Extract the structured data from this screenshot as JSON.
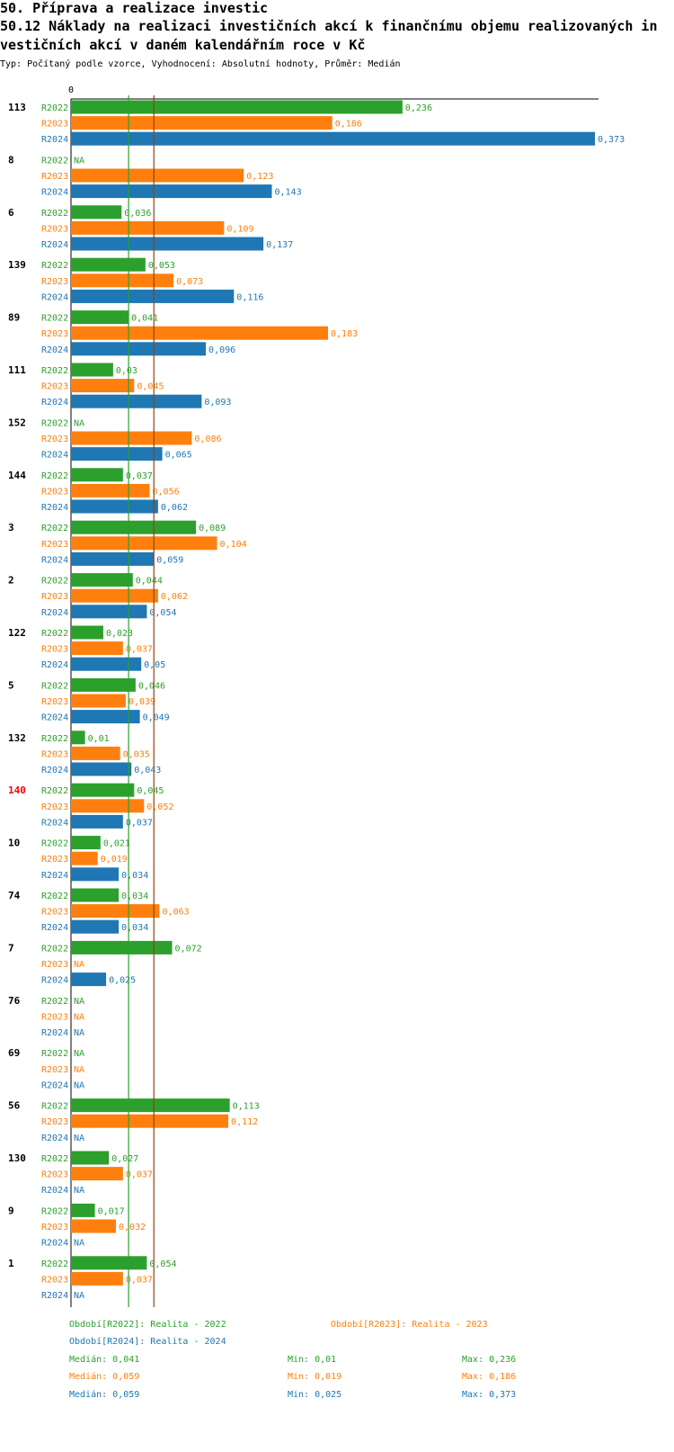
{
  "header": {
    "title1": "50. Příprava a realizace investic",
    "title2a": "50.12 Náklady na realizaci investičních akcí k finančnímu objemu realizovaných in",
    "title2b": "vestičních akcí v daném kalendářním roce v Kč",
    "subtitle": "Typ: Počítaný podle vzorce, Vyhodnocení: Absolutní hodnoty, Průměr: Medián"
  },
  "colors": {
    "R2022": "#2ca02c",
    "R2023": "#ff7f0e",
    "R2024": "#1f77b4",
    "highlight": "#ff0000",
    "median_line_a": "#2ca02c",
    "median_line_b": "#8b4513"
  },
  "chart_data": {
    "type": "bar",
    "orientation": "horizontal",
    "axis_zero_label": "0",
    "xlim": [
      0,
      0.373
    ],
    "series_names": [
      "R2022",
      "R2023",
      "R2024"
    ],
    "reference_lines": [
      {
        "name": "Medián R2022",
        "value": 0.041,
        "color": "#2ca02c"
      },
      {
        "name": "Medián R2023/R2024",
        "value": 0.059,
        "color": "#8b4513"
      }
    ],
    "groups": [
      {
        "id": "113",
        "highlight": false,
        "values": [
          0.236,
          0.186,
          0.373
        ]
      },
      {
        "id": "8",
        "highlight": false,
        "values": [
          null,
          0.123,
          0.143
        ]
      },
      {
        "id": "6",
        "highlight": false,
        "values": [
          0.036,
          0.109,
          0.137
        ]
      },
      {
        "id": "139",
        "highlight": false,
        "values": [
          0.053,
          0.073,
          0.116
        ]
      },
      {
        "id": "89",
        "highlight": false,
        "values": [
          0.041,
          0.183,
          0.096
        ]
      },
      {
        "id": "111",
        "highlight": false,
        "values": [
          0.03,
          0.045,
          0.093
        ]
      },
      {
        "id": "152",
        "highlight": false,
        "values": [
          null,
          0.086,
          0.065
        ]
      },
      {
        "id": "144",
        "highlight": false,
        "values": [
          0.037,
          0.056,
          0.062
        ]
      },
      {
        "id": "3",
        "highlight": false,
        "values": [
          0.089,
          0.104,
          0.059
        ]
      },
      {
        "id": "2",
        "highlight": false,
        "values": [
          0.044,
          0.062,
          0.054
        ]
      },
      {
        "id": "122",
        "highlight": false,
        "values": [
          0.023,
          0.037,
          0.05
        ]
      },
      {
        "id": "5",
        "highlight": false,
        "values": [
          0.046,
          0.039,
          0.049
        ]
      },
      {
        "id": "132",
        "highlight": false,
        "values": [
          0.01,
          0.035,
          0.043
        ]
      },
      {
        "id": "140",
        "highlight": true,
        "values": [
          0.045,
          0.052,
          0.037
        ]
      },
      {
        "id": "10",
        "highlight": false,
        "values": [
          0.021,
          0.019,
          0.034
        ]
      },
      {
        "id": "74",
        "highlight": false,
        "values": [
          0.034,
          0.063,
          0.034
        ]
      },
      {
        "id": "7",
        "highlight": false,
        "values": [
          0.072,
          null,
          0.025
        ]
      },
      {
        "id": "76",
        "highlight": false,
        "values": [
          null,
          null,
          null
        ]
      },
      {
        "id": "69",
        "highlight": false,
        "values": [
          null,
          null,
          null
        ]
      },
      {
        "id": "56",
        "highlight": false,
        "values": [
          0.113,
          0.112,
          null
        ]
      },
      {
        "id": "130",
        "highlight": false,
        "values": [
          0.027,
          0.037,
          null
        ]
      },
      {
        "id": "9",
        "highlight": false,
        "values": [
          0.017,
          0.032,
          null
        ]
      },
      {
        "id": "1",
        "highlight": false,
        "values": [
          0.054,
          0.037,
          null
        ]
      }
    ]
  },
  "legend": {
    "r2022": "Období[R2022]: Realita - 2022",
    "r2023": "Období[R2023]: Realita - 2023",
    "r2024": "Období[R2024]: Realita - 2024",
    "stats": [
      {
        "median": "Medián: 0,041",
        "min": "Min: 0,01",
        "max": "Max: 0,236"
      },
      {
        "median": "Medián: 0,059",
        "min": "Min: 0,019",
        "max": "Max: 0,186"
      },
      {
        "median": "Medián: 0,059",
        "min": "Min: 0,025",
        "max": "Max: 0,373"
      }
    ]
  },
  "na_label": "NA"
}
